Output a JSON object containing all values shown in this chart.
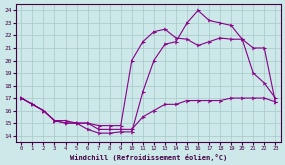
{
  "xlabel": "Windchill (Refroidissement éolien,°C)",
  "background_color": "#cce8e8",
  "line_color": "#880088",
  "xlim": [
    -0.5,
    23.5
  ],
  "ylim": [
    13.5,
    24.5
  ],
  "xticks": [
    0,
    1,
    2,
    3,
    4,
    5,
    6,
    7,
    8,
    9,
    10,
    11,
    12,
    13,
    14,
    15,
    16,
    17,
    18,
    19,
    20,
    21,
    22,
    23
  ],
  "yticks": [
    14,
    15,
    16,
    17,
    18,
    19,
    20,
    21,
    22,
    23,
    24
  ],
  "line1_x": [
    0,
    1,
    2,
    3,
    4,
    5,
    6,
    7,
    8,
    9,
    10,
    11,
    12,
    13,
    14,
    15,
    16,
    17,
    18,
    19,
    20,
    21,
    22,
    23
  ],
  "line1_y": [
    17.0,
    16.5,
    16.0,
    15.2,
    15.0,
    15.0,
    14.5,
    14.2,
    14.2,
    14.3,
    14.3,
    17.5,
    20.0,
    21.3,
    21.5,
    23.0,
    24.0,
    23.2,
    23.0,
    22.8,
    21.7,
    19.0,
    18.2,
    17.0
  ],
  "line2_x": [
    0,
    1,
    2,
    3,
    4,
    5,
    6,
    7,
    8,
    9,
    10,
    11,
    12,
    13,
    14,
    15,
    16,
    17,
    18,
    19,
    20,
    21,
    22,
    23
  ],
  "line2_y": [
    17.0,
    16.5,
    16.0,
    15.2,
    15.2,
    15.0,
    15.0,
    14.8,
    14.8,
    14.8,
    20.0,
    21.5,
    22.3,
    22.5,
    21.8,
    21.7,
    21.2,
    21.5,
    21.8,
    21.7,
    21.7,
    21.0,
    21.0,
    16.7
  ],
  "line3_x": [
    0,
    1,
    2,
    3,
    4,
    5,
    6,
    7,
    8,
    9,
    10,
    11,
    12,
    13,
    14,
    15,
    16,
    17,
    18,
    19,
    20,
    21,
    22,
    23
  ],
  "line3_y": [
    17.0,
    16.5,
    16.0,
    15.2,
    15.0,
    15.0,
    15.0,
    14.5,
    14.5,
    14.5,
    14.5,
    15.5,
    16.0,
    16.5,
    16.5,
    16.8,
    16.8,
    16.8,
    16.8,
    17.0,
    17.0,
    17.0,
    17.0,
    16.7
  ]
}
